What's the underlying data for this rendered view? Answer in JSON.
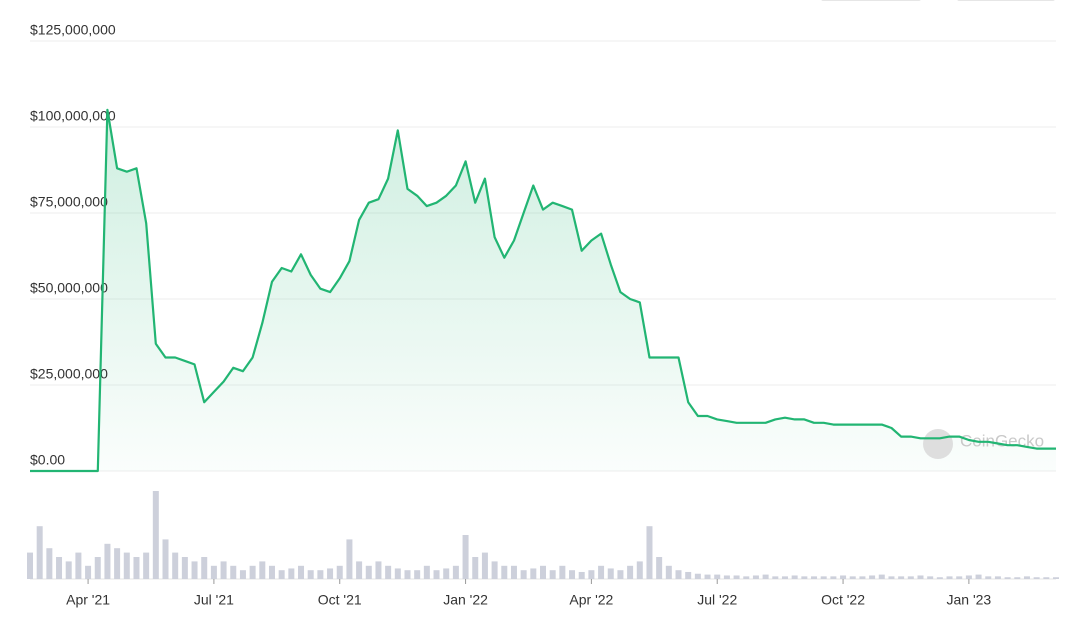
{
  "chart_data": {
    "type": "line",
    "watermark": "CoinGecko",
    "color": "#22b573",
    "categories": [
      null,
      null,
      null,
      null,
      null,
      null,
      "Apr '21",
      null,
      null,
      null,
      null,
      null,
      null,
      null,
      null,
      null,
      null,
      null,
      null,
      "Jul '21",
      null,
      null,
      null,
      null,
      null,
      null,
      null,
      null,
      null,
      null,
      null,
      null,
      "Oct '21",
      null,
      null,
      null,
      null,
      null,
      null,
      null,
      null,
      null,
      null,
      null,
      null,
      "Jan '22",
      null,
      null,
      null,
      null,
      null,
      null,
      null,
      null,
      null,
      null,
      null,
      null,
      "Apr '22",
      null,
      null,
      null,
      null,
      null,
      null,
      null,
      null,
      null,
      null,
      null,
      null,
      "Jul '22",
      null,
      null,
      null,
      null,
      null,
      null,
      null,
      null,
      null,
      null,
      null,
      null,
      "Oct '22",
      null,
      null,
      null,
      null,
      null,
      null,
      null,
      null,
      null,
      null,
      null,
      null,
      "Jan '23",
      null,
      null,
      null,
      null,
      null,
      null,
      null,
      null,
      null
    ],
    "values": [
      0,
      0,
      0,
      0,
      0,
      0,
      0,
      0,
      105000000,
      88000000,
      87000000,
      88000000,
      72000000,
      37000000,
      33000000,
      33000000,
      32000000,
      31000000,
      20000000,
      23000000,
      26000000,
      30000000,
      29000000,
      33000000,
      43000000,
      55000000,
      59000000,
      58000000,
      63000000,
      57000000,
      53000000,
      52000000,
      56000000,
      61000000,
      73000000,
      78000000,
      79000000,
      85000000,
      99000000,
      82000000,
      80000000,
      77000000,
      78000000,
      80000000,
      83000000,
      90000000,
      78000000,
      85000000,
      68000000,
      62000000,
      67000000,
      75000000,
      83000000,
      76000000,
      78000000,
      77000000,
      76000000,
      64000000,
      67000000,
      69000000,
      60000000,
      52000000,
      50000000,
      49000000,
      33000000,
      33000000,
      33000000,
      33000000,
      20000000,
      16000000,
      16000000,
      15000000,
      14500000,
      14000000,
      14000000,
      14000000,
      14000000,
      15000000,
      15500000,
      15000000,
      15000000,
      14000000,
      14000000,
      13500000,
      13500000,
      13500000,
      13500000,
      13500000,
      13500000,
      12500000,
      10000000,
      10000000,
      9500000,
      9500000,
      9500000,
      10000000,
      10000000,
      9000000,
      8500000,
      8500000,
      8000000,
      7500000,
      7500000,
      7000000,
      6500000,
      6500000,
      6500000
    ],
    "ylim": [
      0,
      125000000
    ],
    "yticks": [
      {
        "value": 0,
        "label": "$0.00"
      },
      {
        "value": 25000000,
        "label": "$25,000,000"
      },
      {
        "value": 50000000,
        "label": "$50,000,000"
      },
      {
        "value": 75000000,
        "label": "$75,000,000"
      },
      {
        "value": 100000000,
        "label": "$100,000,000"
      },
      {
        "value": 125000000,
        "label": "$125,000,000"
      }
    ],
    "grid": true,
    "volume_color": "#cdd0db",
    "volume_lim": [
      0,
      100
    ],
    "volume_values": [
      30,
      60,
      35,
      25,
      20,
      30,
      15,
      25,
      40,
      35,
      30,
      25,
      30,
      100,
      45,
      30,
      25,
      20,
      25,
      15,
      20,
      15,
      10,
      15,
      20,
      15,
      10,
      12,
      15,
      10,
      10,
      12,
      15,
      45,
      20,
      15,
      20,
      15,
      12,
      10,
      10,
      15,
      10,
      12,
      15,
      50,
      25,
      30,
      20,
      15,
      15,
      10,
      12,
      15,
      10,
      15,
      10,
      8,
      10,
      15,
      12,
      10,
      15,
      20,
      60,
      25,
      15,
      10,
      8,
      6,
      5,
      5,
      4,
      4,
      3,
      4,
      5,
      3,
      3,
      4,
      3,
      3,
      3,
      3,
      4,
      3,
      3,
      4,
      5,
      3,
      3,
      3,
      4,
      3,
      2,
      3,
      3,
      4,
      5,
      3,
      3,
      2,
      2,
      3,
      2,
      2,
      2
    ]
  }
}
